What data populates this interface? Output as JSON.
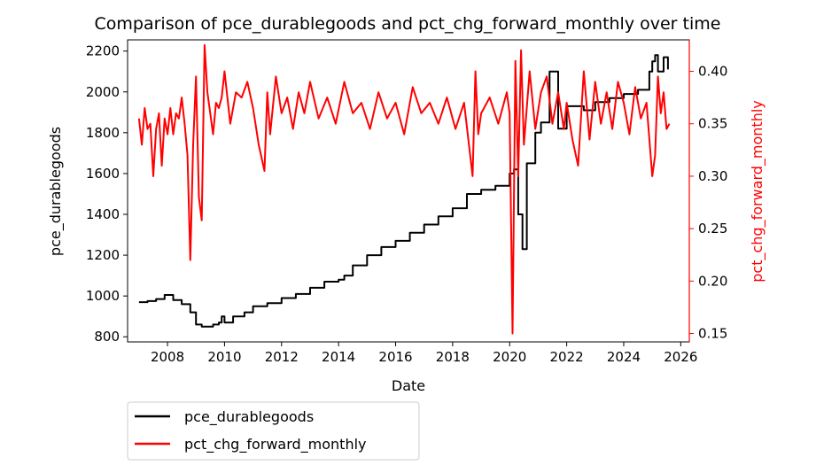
{
  "chart_data": {
    "type": "line",
    "title": "Comparison of pce_durablegoods and pct_chg_forward_monthly over time",
    "xlabel": "Date",
    "x_ticks": [
      "2008",
      "2010",
      "2012",
      "2014",
      "2016",
      "2018",
      "2020",
      "2022",
      "2024",
      "2026"
    ],
    "xlim": [
      2006.6,
      2026.3
    ],
    "y_left": {
      "label": "pce_durablegoods",
      "ticks": [
        800,
        1000,
        1200,
        1400,
        1600,
        1800,
        2000,
        2200
      ],
      "lim": [
        775,
        2255
      ],
      "color": "#000000"
    },
    "y_right": {
      "label": "pct_chg_forward_monthly",
      "ticks": [
        "0.15",
        "0.20",
        "0.25",
        "0.30",
        "0.35",
        "0.40"
      ],
      "lim": [
        0.142,
        0.43
      ],
      "color": "#ff0000"
    },
    "legend": {
      "placement": "below-left",
      "entries": [
        {
          "name": "pce_durablegoods",
          "color": "#000000"
        },
        {
          "name": "pct_chg_forward_monthly",
          "color": "#ff0000"
        }
      ]
    },
    "grid": false,
    "series": [
      {
        "name": "pce_durablegoods",
        "axis": "left",
        "color": "#000000",
        "x": [
          2007.0,
          2007.3,
          2007.6,
          2007.9,
          2008.2,
          2008.5,
          2008.8,
          2009.0,
          2009.2,
          2009.4,
          2009.6,
          2009.8,
          2009.9,
          2010.0,
          2010.3,
          2010.7,
          2011.0,
          2011.5,
          2012.0,
          2012.5,
          2013.0,
          2013.5,
          2014.0,
          2014.2,
          2014.5,
          2015.0,
          2015.5,
          2016.0,
          2016.5,
          2017.0,
          2017.5,
          2018.0,
          2018.5,
          2019.0,
          2019.5,
          2020.0,
          2020.15,
          2020.3,
          2020.45,
          2020.6,
          2020.9,
          2021.1,
          2021.4,
          2021.7,
          2022.0,
          2022.3,
          2022.6,
          2023.0,
          2023.5,
          2024.0,
          2024.5,
          2024.9,
          2025.0,
          2025.1,
          2025.2,
          2025.4,
          2025.55
        ],
        "values": [
          970,
          975,
          985,
          1005,
          980,
          960,
          920,
          860,
          850,
          850,
          860,
          870,
          900,
          870,
          900,
          920,
          950,
          965,
          990,
          1010,
          1040,
          1070,
          1080,
          1100,
          1150,
          1200,
          1240,
          1270,
          1310,
          1350,
          1390,
          1430,
          1500,
          1520,
          1540,
          1600,
          1620,
          1400,
          1230,
          1650,
          1800,
          1850,
          2100,
          1820,
          1930,
          1930,
          1910,
          1950,
          1970,
          1990,
          2010,
          2100,
          2150,
          2180,
          2100,
          2170,
          2110
        ]
      },
      {
        "name": "pct_chg_forward_monthly",
        "axis": "right",
        "color": "#ff0000",
        "x": [
          2007.0,
          2007.1,
          2007.2,
          2007.3,
          2007.4,
          2007.5,
          2007.6,
          2007.7,
          2007.8,
          2007.9,
          2008.0,
          2008.1,
          2008.2,
          2008.3,
          2008.4,
          2008.5,
          2008.6,
          2008.7,
          2008.8,
          2008.9,
          2009.0,
          2009.1,
          2009.2,
          2009.3,
          2009.4,
          2009.5,
          2009.6,
          2009.7,
          2009.8,
          2009.9,
          2010.0,
          2010.2,
          2010.4,
          2010.6,
          2010.8,
          2011.0,
          2011.2,
          2011.4,
          2011.5,
          2011.6,
          2011.8,
          2012.0,
          2012.2,
          2012.4,
          2012.6,
          2012.8,
          2013.0,
          2013.3,
          2013.6,
          2013.9,
          2014.2,
          2014.5,
          2014.8,
          2015.1,
          2015.4,
          2015.7,
          2016.0,
          2016.3,
          2016.6,
          2016.9,
          2017.2,
          2017.5,
          2017.8,
          2018.1,
          2018.4,
          2018.7,
          2018.8,
          2018.9,
          2019.0,
          2019.3,
          2019.6,
          2019.9,
          2020.0,
          2020.1,
          2020.2,
          2020.3,
          2020.4,
          2020.5,
          2020.7,
          2020.9,
          2021.1,
          2021.3,
          2021.5,
          2021.7,
          2021.9,
          2022.0,
          2022.2,
          2022.4,
          2022.6,
          2022.8,
          2023.0,
          2023.2,
          2023.4,
          2023.6,
          2023.8,
          2024.0,
          2024.2,
          2024.4,
          2024.6,
          2024.8,
          2025.0,
          2025.1,
          2025.2,
          2025.3,
          2025.4,
          2025.5,
          2025.6
        ],
        "values": [
          0.355,
          0.33,
          0.365,
          0.345,
          0.35,
          0.3,
          0.345,
          0.36,
          0.31,
          0.355,
          0.34,
          0.365,
          0.34,
          0.36,
          0.355,
          0.375,
          0.35,
          0.32,
          0.22,
          0.33,
          0.395,
          0.28,
          0.258,
          0.425,
          0.38,
          0.36,
          0.34,
          0.37,
          0.365,
          0.375,
          0.4,
          0.35,
          0.38,
          0.375,
          0.39,
          0.365,
          0.33,
          0.305,
          0.38,
          0.34,
          0.395,
          0.36,
          0.375,
          0.345,
          0.38,
          0.36,
          0.39,
          0.355,
          0.375,
          0.35,
          0.39,
          0.36,
          0.37,
          0.345,
          0.38,
          0.355,
          0.37,
          0.34,
          0.385,
          0.36,
          0.37,
          0.35,
          0.375,
          0.345,
          0.37,
          0.3,
          0.4,
          0.34,
          0.36,
          0.375,
          0.35,
          0.38,
          0.36,
          0.15,
          0.41,
          0.3,
          0.42,
          0.33,
          0.4,
          0.345,
          0.38,
          0.395,
          0.35,
          0.38,
          0.345,
          0.37,
          0.335,
          0.31,
          0.4,
          0.335,
          0.39,
          0.35,
          0.38,
          0.345,
          0.39,
          0.37,
          0.34,
          0.385,
          0.355,
          0.37,
          0.3,
          0.32,
          0.395,
          0.36,
          0.38,
          0.345,
          0.35
        ]
      }
    ]
  }
}
